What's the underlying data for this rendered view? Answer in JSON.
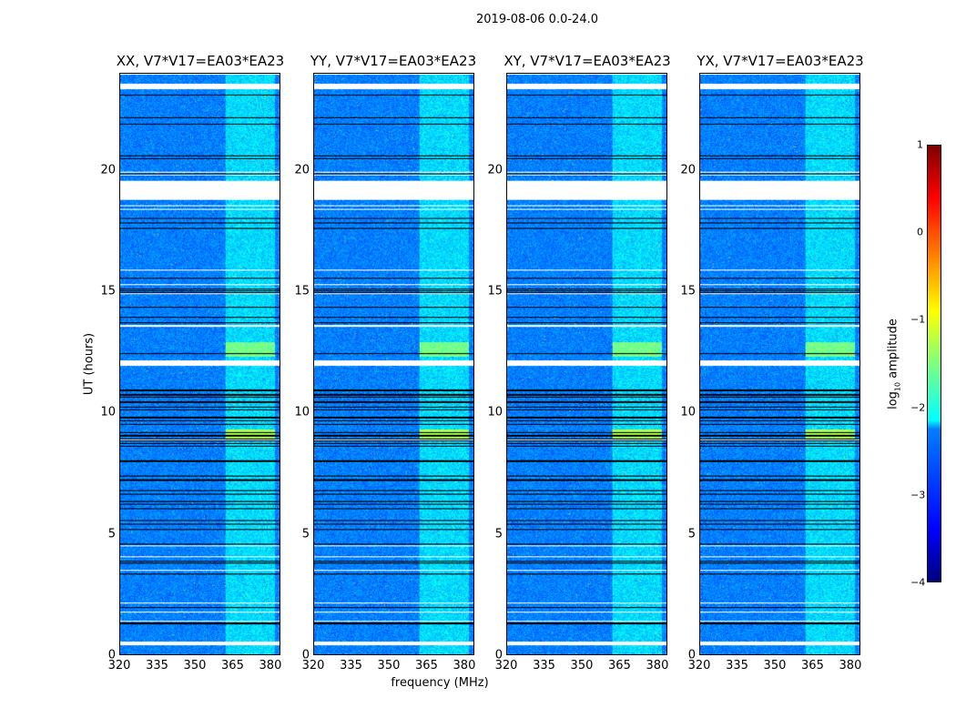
{
  "chart_data": {
    "type": "heatmap",
    "title": "2019-08-06 0.0-24.0",
    "xlabel": "frequency (MHz)",
    "ylabel": "UT (hours)",
    "xlim": [
      320,
      384
    ],
    "ylim": [
      0,
      24
    ],
    "xticks": [
      "320",
      "335",
      "350",
      "365",
      "380"
    ],
    "xtick_values": [
      320,
      335,
      350,
      365,
      380
    ],
    "yticks": [
      "0",
      "5",
      "10",
      "15",
      "20"
    ],
    "ytick_values": [
      0,
      5,
      10,
      15,
      20
    ],
    "panels": [
      {
        "title": "XX, V7*V17=EA03*EA23"
      },
      {
        "title": "YY, V7*V17=EA03*EA23"
      },
      {
        "title": "XY, V7*V17=EA03*EA23"
      },
      {
        "title": "YX, V7*V17=EA03*EA23"
      }
    ],
    "features": {
      "bright_band_mhz": [
        362,
        382
      ],
      "flagged_hours": [
        [
          23.4,
          23.6
        ],
        [
          18.8,
          19.6
        ],
        [
          11.95,
          12.15
        ],
        [
          0.4,
          0.55
        ]
      ]
    },
    "colorbar": {
      "label_prefix": "log",
      "label_sub": "10",
      "label_suffix": " amplitude",
      "range": [
        -4,
        1
      ],
      "ticks": [
        "1",
        "0",
        "−1",
        "−2",
        "−3",
        "−4"
      ],
      "tick_values": [
        1,
        0,
        -1,
        -2,
        -3,
        -4
      ],
      "colormap": "jet"
    }
  }
}
